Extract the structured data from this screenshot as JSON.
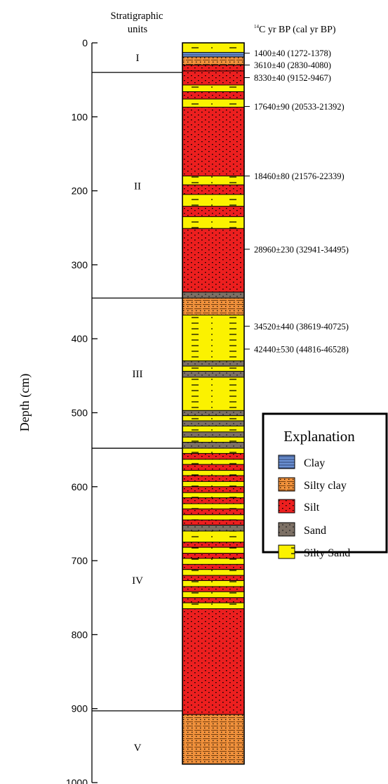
{
  "header": {
    "units_title_line1": "Stratigraphic",
    "units_title_line2": "units",
    "c14_superscript": "14",
    "c14_title_rest": "C yr BP (cal yr BP)"
  },
  "axis": {
    "label": "Depth (cm)",
    "min": 0,
    "max": 1000,
    "ticks": [
      0,
      100,
      200,
      300,
      400,
      500,
      600,
      700,
      800,
      900,
      1000
    ]
  },
  "colors": {
    "clay": "#6a8fd0",
    "silty_clay": "#f0913c",
    "silt": "#ec1f1f",
    "sand": "#7c7065",
    "silty_sand": "#fbf200",
    "line": "#000000"
  },
  "units": [
    {
      "label": "I",
      "top": 0,
      "bottom": 40
    },
    {
      "label": "II",
      "top": 40,
      "bottom": 345
    },
    {
      "label": "III",
      "top": 345,
      "bottom": 548
    },
    {
      "label": "IV",
      "top": 548,
      "bottom": 903
    },
    {
      "label": "V",
      "top": 903,
      "bottom": 1000
    }
  ],
  "layers": [
    {
      "top": 0,
      "bottom": 13,
      "lith": "silty_sand"
    },
    {
      "top": 13,
      "bottom": 19,
      "lith": "clay"
    },
    {
      "top": 19,
      "bottom": 30,
      "lith": "silty_clay"
    },
    {
      "top": 30,
      "bottom": 38,
      "lith": "silt"
    },
    {
      "top": 38,
      "bottom": 57,
      "lith": "silt"
    },
    {
      "top": 57,
      "bottom": 66,
      "lith": "silty_sand"
    },
    {
      "top": 66,
      "bottom": 76,
      "lith": "silt"
    },
    {
      "top": 76,
      "bottom": 87,
      "lith": "silty_sand"
    },
    {
      "top": 87,
      "bottom": 180,
      "lith": "silt"
    },
    {
      "top": 180,
      "bottom": 192,
      "lith": "silty_sand"
    },
    {
      "top": 192,
      "bottom": 205,
      "lith": "silt"
    },
    {
      "top": 205,
      "bottom": 221,
      "lith": "silty_sand"
    },
    {
      "top": 221,
      "bottom": 235,
      "lith": "silt"
    },
    {
      "top": 235,
      "bottom": 251,
      "lith": "silty_sand"
    },
    {
      "top": 251,
      "bottom": 337,
      "lith": "silt"
    },
    {
      "top": 337,
      "bottom": 345,
      "lith": "sand"
    },
    {
      "top": 345,
      "bottom": 368,
      "lith": "silty_clay"
    },
    {
      "top": 368,
      "bottom": 430,
      "lith": "silty_sand"
    },
    {
      "top": 430,
      "bottom": 437,
      "lith": "sand"
    },
    {
      "top": 437,
      "bottom": 444,
      "lith": "silty_sand"
    },
    {
      "top": 444,
      "bottom": 452,
      "lith": "sand"
    },
    {
      "top": 452,
      "bottom": 497,
      "lith": "silty_sand"
    },
    {
      "top": 497,
      "bottom": 504,
      "lith": "sand"
    },
    {
      "top": 504,
      "bottom": 511,
      "lith": "silty_sand"
    },
    {
      "top": 511,
      "bottom": 518,
      "lith": "sand"
    },
    {
      "top": 518,
      "bottom": 526,
      "lith": "silty_sand"
    },
    {
      "top": 526,
      "bottom": 533,
      "lith": "sand"
    },
    {
      "top": 533,
      "bottom": 540,
      "lith": "silty_sand"
    },
    {
      "top": 540,
      "bottom": 548,
      "lith": "sand"
    },
    {
      "top": 548,
      "bottom": 555,
      "lith": "silty_sand"
    },
    {
      "top": 555,
      "bottom": 563,
      "lith": "silt"
    },
    {
      "top": 563,
      "bottom": 570,
      "lith": "silty_sand"
    },
    {
      "top": 570,
      "bottom": 578,
      "lith": "silt"
    },
    {
      "top": 578,
      "bottom": 585,
      "lith": "silty_sand"
    },
    {
      "top": 585,
      "bottom": 593,
      "lith": "silt"
    },
    {
      "top": 593,
      "bottom": 600,
      "lith": "silty_sand"
    },
    {
      "top": 600,
      "bottom": 608,
      "lith": "silt"
    },
    {
      "top": 608,
      "bottom": 615,
      "lith": "silty_sand"
    },
    {
      "top": 615,
      "bottom": 623,
      "lith": "silt"
    },
    {
      "top": 623,
      "bottom": 630,
      "lith": "silty_sand"
    },
    {
      "top": 630,
      "bottom": 638,
      "lith": "silt"
    },
    {
      "top": 638,
      "bottom": 645,
      "lith": "silty_sand"
    },
    {
      "top": 645,
      "bottom": 652,
      "lith": "silt"
    },
    {
      "top": 652,
      "bottom": 660,
      "lith": "sand"
    },
    {
      "top": 660,
      "bottom": 675,
      "lith": "silty_sand"
    },
    {
      "top": 675,
      "bottom": 682,
      "lith": "silt"
    },
    {
      "top": 682,
      "bottom": 690,
      "lith": "silty_sand"
    },
    {
      "top": 690,
      "bottom": 697,
      "lith": "silt"
    },
    {
      "top": 697,
      "bottom": 705,
      "lith": "silty_sand"
    },
    {
      "top": 705,
      "bottom": 712,
      "lith": "silt"
    },
    {
      "top": 712,
      "bottom": 720,
      "lith": "silty_sand"
    },
    {
      "top": 720,
      "bottom": 727,
      "lith": "silt"
    },
    {
      "top": 727,
      "bottom": 735,
      "lith": "silty_sand"
    },
    {
      "top": 735,
      "bottom": 742,
      "lith": "silt"
    },
    {
      "top": 742,
      "bottom": 750,
      "lith": "silty_sand"
    },
    {
      "top": 750,
      "bottom": 757,
      "lith": "silt"
    },
    {
      "top": 757,
      "bottom": 765,
      "lith": "silty_sand"
    },
    {
      "top": 765,
      "bottom": 908,
      "lith": "silt"
    },
    {
      "top": 908,
      "bottom": 975,
      "lith": "silty_clay"
    }
  ],
  "dates": [
    {
      "depth": 14,
      "label": "1400±40 (1272-1378)"
    },
    {
      "depth": 30,
      "label": "3610±40 (2830-4080)"
    },
    {
      "depth": 47,
      "label": "8330±40 (9152-9467)"
    },
    {
      "depth": 86,
      "label": "17640±90 (20533-21392)"
    },
    {
      "depth": 180,
      "label": "18460±80 (21576-22339)"
    },
    {
      "depth": 279,
      "label": "28960±230 (32941-34495)"
    },
    {
      "depth": 383,
      "label": "34520±440 (38619-40725)"
    },
    {
      "depth": 414,
      "label": "42440±530 (44816-46528)"
    }
  ],
  "legend": {
    "title": "Explanation",
    "items": [
      {
        "lith": "clay",
        "label": "Clay"
      },
      {
        "lith": "silty_clay",
        "label": "Silty clay"
      },
      {
        "lith": "silt",
        "label": "Silt"
      },
      {
        "lith": "sand",
        "label": "Sand"
      },
      {
        "lith": "silty_sand",
        "label": "Silty Sand"
      }
    ]
  }
}
